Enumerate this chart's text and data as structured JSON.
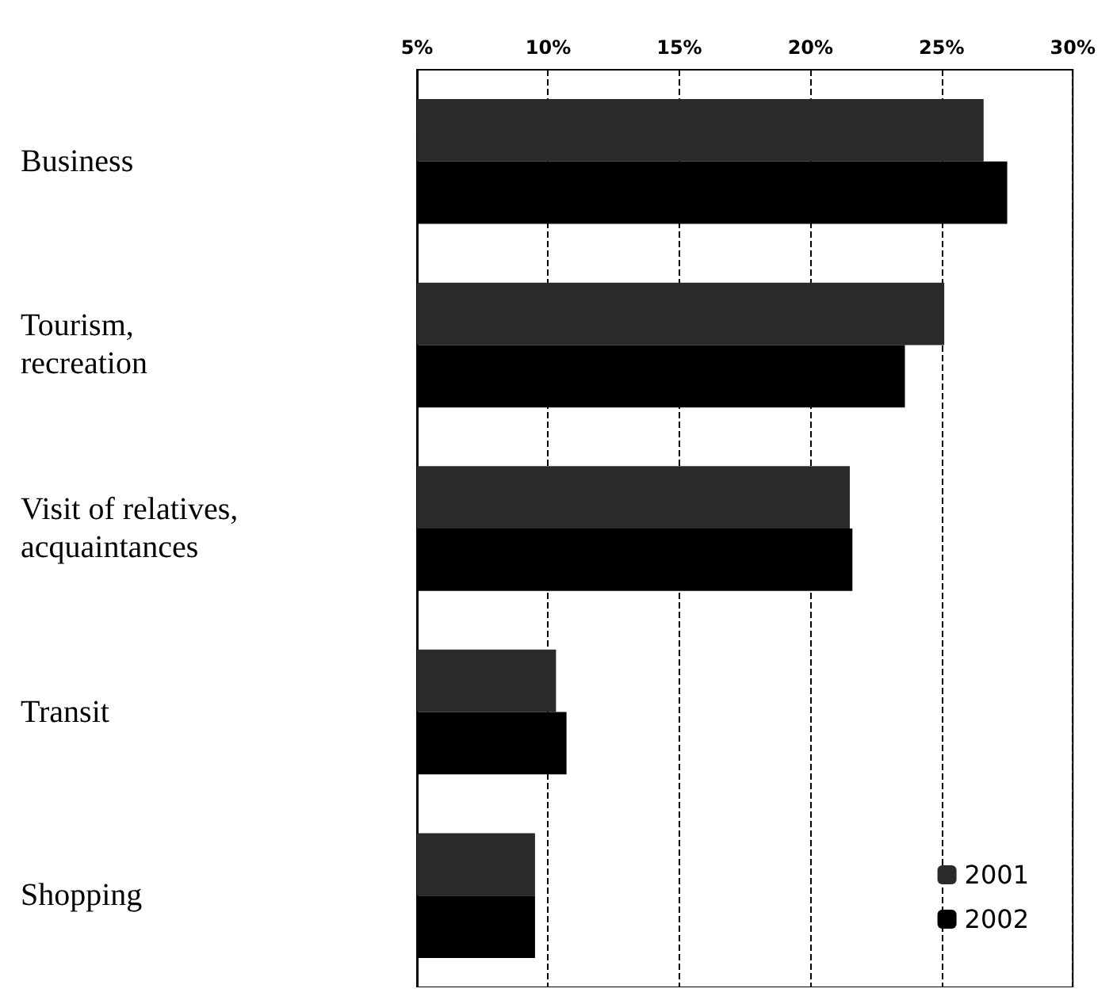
{
  "chart_data": {
    "type": "bar",
    "orientation": "horizontal",
    "categories": [
      "Business",
      "Tourism,\nrecreation",
      "Visit of relatives,\nacquaintances",
      "Transit",
      "Shopping"
    ],
    "series": [
      {
        "name": "2001",
        "color": "#2a2a2a",
        "values": [
          26.6,
          25.1,
          21.5,
          10.3,
          9.5
        ]
      },
      {
        "name": "2002",
        "color": "#000000",
        "values": [
          27.5,
          23.6,
          21.6,
          10.7,
          9.5
        ]
      }
    ],
    "xlim": [
      5,
      30
    ],
    "xticks": [
      {
        "value": 5,
        "label": "5%"
      },
      {
        "value": 10,
        "label": "10%"
      },
      {
        "value": 15,
        "label": "15%"
      },
      {
        "value": 20,
        "label": "20%"
      },
      {
        "value": 25,
        "label": "25%"
      },
      {
        "value": 30,
        "label": "30%"
      }
    ],
    "grid": "x",
    "legend": "bottom right"
  }
}
